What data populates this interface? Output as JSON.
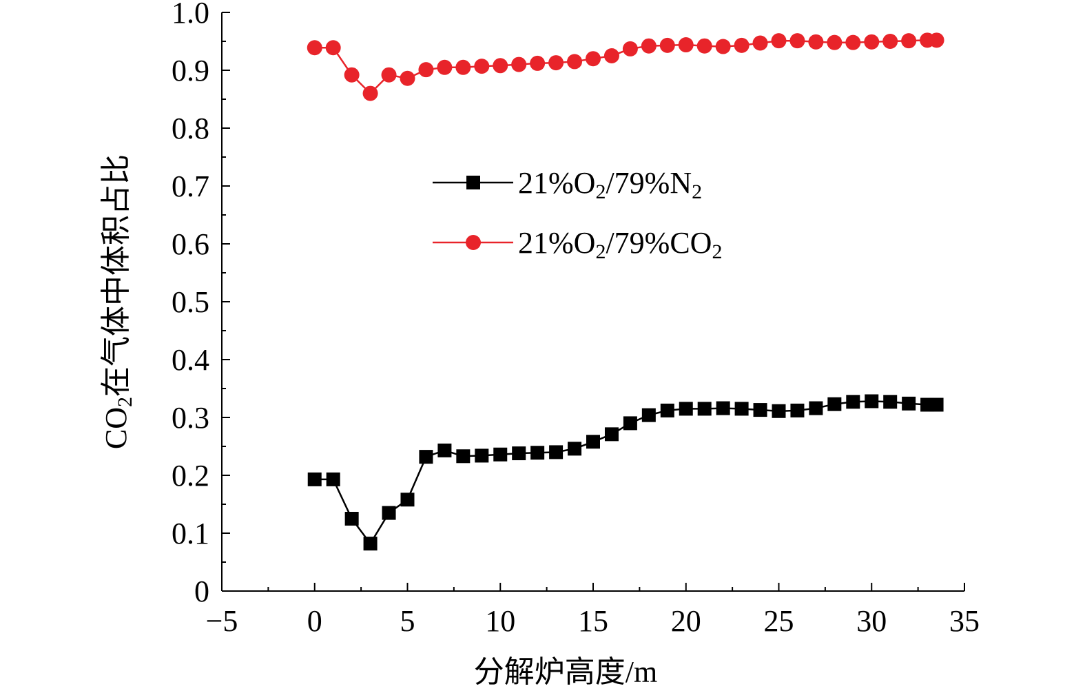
{
  "chart_data": {
    "type": "line",
    "xlabel": "分解炉高度/m",
    "ylabel": {
      "prefix": "CO",
      "sub": "2",
      "rest": "在气体中体积占比"
    },
    "xlim": [
      -5,
      35
    ],
    "ylim": [
      0,
      1.0
    ],
    "xticks": [
      -5,
      0,
      5,
      10,
      15,
      20,
      25,
      30,
      35
    ],
    "xtick_labels": [
      "−5",
      "0",
      "5",
      "10",
      "15",
      "20",
      "25",
      "30",
      "35"
    ],
    "yticks": [
      0,
      0.1,
      0.2,
      0.3,
      0.4,
      0.5,
      0.6,
      0.7,
      0.8,
      0.9,
      1.0
    ],
    "ytick_labels": [
      "0",
      "0.1",
      "0.2",
      "0.3",
      "0.4",
      "0.5",
      "0.6",
      "0.7",
      "0.8",
      "0.9",
      "1.0"
    ],
    "legend_position": "middle-center",
    "series": [
      {
        "name": "21%O2/79%N2",
        "label_parts": [
          {
            "t": "21%O",
            "sub": false
          },
          {
            "t": "2",
            "sub": true
          },
          {
            "t": "/79%N",
            "sub": false
          },
          {
            "t": "2",
            "sub": true
          }
        ],
        "color": "#000000",
        "marker": "square",
        "x": [
          0,
          1,
          2,
          3,
          4,
          5,
          6,
          7,
          8,
          9,
          10,
          11,
          12,
          13,
          14,
          15,
          16,
          17,
          18,
          19,
          20,
          21,
          22,
          23,
          24,
          25,
          26,
          27,
          28,
          29,
          30,
          31,
          32,
          33,
          33.5
        ],
        "y": [
          0.193,
          0.193,
          0.125,
          0.082,
          0.135,
          0.158,
          0.232,
          0.243,
          0.233,
          0.234,
          0.236,
          0.238,
          0.239,
          0.24,
          0.246,
          0.258,
          0.271,
          0.29,
          0.304,
          0.312,
          0.315,
          0.315,
          0.316,
          0.315,
          0.313,
          0.311,
          0.312,
          0.316,
          0.323,
          0.327,
          0.328,
          0.327,
          0.324,
          0.322,
          0.322
        ]
      },
      {
        "name": "21%O2/79%CO2",
        "label_parts": [
          {
            "t": "21%O",
            "sub": false
          },
          {
            "t": "2",
            "sub": true
          },
          {
            "t": "/79%CO",
            "sub": false
          },
          {
            "t": "2",
            "sub": true
          }
        ],
        "color": "#e8242a",
        "marker": "circle",
        "x": [
          0,
          1,
          2,
          3,
          4,
          5,
          6,
          7,
          8,
          9,
          10,
          11,
          12,
          13,
          14,
          15,
          16,
          17,
          18,
          19,
          20,
          21,
          22,
          23,
          24,
          25,
          26,
          27,
          28,
          29,
          30,
          31,
          32,
          33,
          33.5
        ],
        "y": [
          0.939,
          0.939,
          0.892,
          0.86,
          0.892,
          0.886,
          0.901,
          0.905,
          0.905,
          0.907,
          0.908,
          0.91,
          0.912,
          0.913,
          0.915,
          0.92,
          0.925,
          0.937,
          0.942,
          0.943,
          0.944,
          0.942,
          0.941,
          0.943,
          0.947,
          0.951,
          0.951,
          0.949,
          0.948,
          0.948,
          0.949,
          0.95,
          0.951,
          0.952,
          0.952
        ]
      }
    ]
  }
}
